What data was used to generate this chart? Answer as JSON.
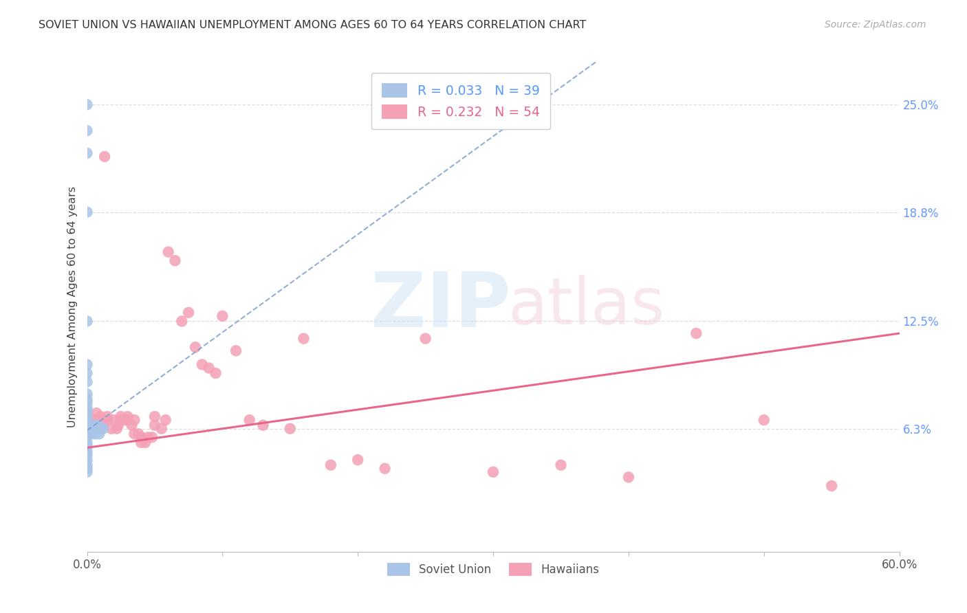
{
  "title": "SOVIET UNION VS HAWAIIAN UNEMPLOYMENT AMONG AGES 60 TO 64 YEARS CORRELATION CHART",
  "source": "Source: ZipAtlas.com",
  "ylabel": "Unemployment Among Ages 60 to 64 years",
  "ytick_labels": [
    "6.3%",
    "12.5%",
    "18.8%",
    "25.0%"
  ],
  "ytick_values": [
    0.063,
    0.125,
    0.188,
    0.25
  ],
  "xlim": [
    0.0,
    0.6
  ],
  "ylim": [
    -0.008,
    0.275
  ],
  "legend1_r": "R = 0.033",
  "legend1_n": "N = 39",
  "legend2_r": "R = 0.232",
  "legend2_n": "N = 54",
  "soviet_color": "#aac4e8",
  "hawaiian_color": "#f4a0b5",
  "soviet_line_color": "#7799cc",
  "hawaiian_line_color": "#e8668a",
  "background_color": "#ffffff",
  "grid_color": "#dddddd",
  "right_tick_color": "#6699ff",
  "soviet_x": [
    0.0,
    0.0,
    0.0,
    0.0,
    0.0,
    0.0,
    0.0,
    0.0,
    0.0,
    0.0,
    0.0,
    0.0,
    0.0,
    0.0,
    0.0,
    0.0,
    0.0,
    0.0,
    0.0,
    0.0,
    0.0,
    0.0,
    0.0,
    0.0,
    0.0,
    0.0,
    0.0,
    0.003,
    0.003,
    0.005,
    0.005,
    0.006,
    0.007,
    0.008,
    0.008,
    0.009,
    0.009,
    0.01,
    0.012
  ],
  "soviet_y": [
    0.25,
    0.235,
    0.222,
    0.188,
    0.125,
    0.1,
    0.095,
    0.09,
    0.083,
    0.08,
    0.078,
    0.075,
    0.073,
    0.07,
    0.068,
    0.065,
    0.063,
    0.06,
    0.058,
    0.055,
    0.053,
    0.05,
    0.048,
    0.045,
    0.042,
    0.04,
    0.038,
    0.063,
    0.06,
    0.065,
    0.063,
    0.06,
    0.063,
    0.065,
    0.063,
    0.063,
    0.06,
    0.063,
    0.063
  ],
  "hawaiian_x": [
    0.005,
    0.007,
    0.008,
    0.01,
    0.012,
    0.013,
    0.015,
    0.015,
    0.018,
    0.02,
    0.022,
    0.023,
    0.025,
    0.025,
    0.028,
    0.03,
    0.03,
    0.033,
    0.035,
    0.035,
    0.038,
    0.04,
    0.04,
    0.043,
    0.045,
    0.048,
    0.05,
    0.05,
    0.055,
    0.058,
    0.06,
    0.065,
    0.07,
    0.075,
    0.08,
    0.085,
    0.09,
    0.095,
    0.1,
    0.11,
    0.12,
    0.13,
    0.15,
    0.16,
    0.18,
    0.2,
    0.22,
    0.25,
    0.3,
    0.35,
    0.4,
    0.45,
    0.5,
    0.55
  ],
  "hawaiian_y": [
    0.068,
    0.072,
    0.068,
    0.07,
    0.065,
    0.22,
    0.07,
    0.068,
    0.063,
    0.068,
    0.063,
    0.065,
    0.07,
    0.068,
    0.068,
    0.07,
    0.068,
    0.065,
    0.068,
    0.06,
    0.06,
    0.058,
    0.055,
    0.055,
    0.058,
    0.058,
    0.07,
    0.065,
    0.063,
    0.068,
    0.165,
    0.16,
    0.125,
    0.13,
    0.11,
    0.1,
    0.098,
    0.095,
    0.128,
    0.108,
    0.068,
    0.065,
    0.063,
    0.115,
    0.042,
    0.045,
    0.04,
    0.115,
    0.038,
    0.042,
    0.035,
    0.118,
    0.068,
    0.03
  ]
}
